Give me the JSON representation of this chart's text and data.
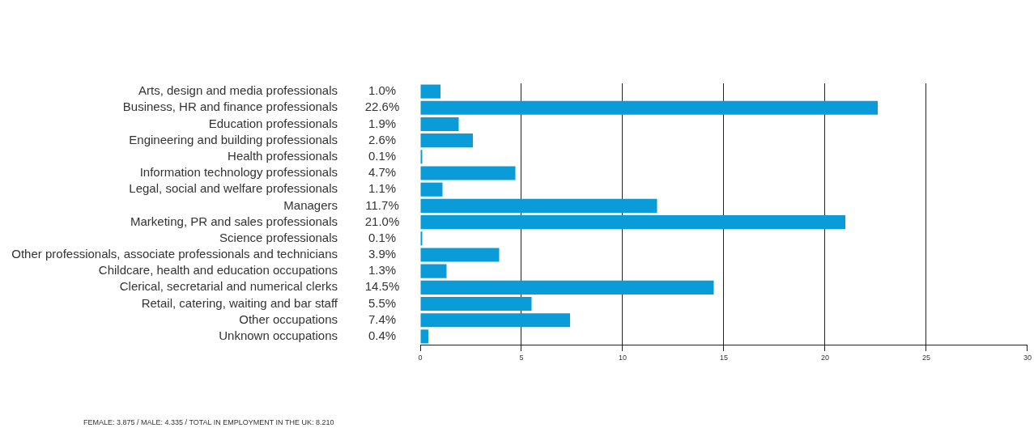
{
  "chart_data": {
    "type": "bar",
    "orientation": "horizontal",
    "categories": [
      "Arts, design and media professionals",
      "Business, HR and finance professionals",
      "Education professionals",
      "Engineering and building professionals",
      "Health professionals",
      "Information technology professionals",
      "Legal, social and welfare professionals",
      "Managers",
      "Marketing, PR and sales professionals",
      "Science professionals",
      "Other professionals, associate professionals and technicians",
      "Childcare, health and education occupations",
      "Clerical, secretarial and numerical clerks",
      "Retail, catering, waiting and bar staff",
      "Other occupations",
      "Unknown occupations"
    ],
    "values": [
      1.0,
      22.6,
      1.9,
      2.6,
      0.1,
      4.7,
      1.1,
      11.7,
      21.0,
      0.1,
      3.9,
      1.3,
      14.5,
      5.5,
      7.4,
      0.4
    ],
    "value_labels": [
      "1.0%",
      "22.6%",
      "1.9%",
      "2.6%",
      "0.1%",
      "4.7%",
      "1.1%",
      "11.7%",
      "21.0%",
      "0.1%",
      "3.9%",
      "1.3%",
      "14.5%",
      "5.5%",
      "7.4%",
      "0.4%"
    ],
    "color": "#0a9bd9",
    "xlim": [
      0,
      30
    ],
    "xticks": [
      0,
      5,
      10,
      15,
      20,
      25,
      30
    ],
    "grid": "x",
    "legend": false,
    "annotations": [
      "FEMALE: 3.875 / MALE: 4.335 / TOTAL IN EMPLOYMENT IN THE UK: 8.210"
    ]
  }
}
